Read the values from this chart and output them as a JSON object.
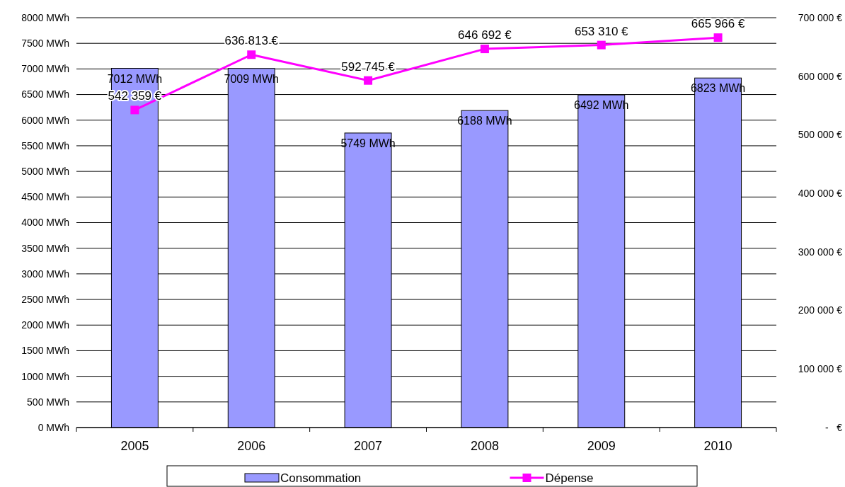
{
  "chart_data": {
    "type": "bar",
    "categories": [
      "2005",
      "2006",
      "2007",
      "2008",
      "2009",
      "2010"
    ],
    "series": [
      {
        "name": "Consommation",
        "color": "#9999ff",
        "values": [
          7012,
          7009,
          5749,
          6188,
          6492,
          6823
        ],
        "value_labels": [
          "7012 MWh",
          "7009 MWh",
          "5749 MWh",
          "6188 MWh",
          "6492 MWh",
          "6823 MWh"
        ]
      },
      {
        "name": "Dépense",
        "type": "line",
        "axis": "y2",
        "color": "#ff00ff",
        "marker": "square",
        "values": [
          542359,
          636813,
          592745,
          646692,
          653310,
          665966
        ],
        "value_labels": [
          "542 359 €",
          "636 813 €",
          "592 745 €",
          "646 692 €",
          "653 310 €",
          "665 966 €"
        ]
      }
    ],
    "ylim": [
      0,
      8000
    ],
    "yticks": [
      {
        "value": 0,
        "label": "0 MWh"
      },
      {
        "value": 500,
        "label": "500 MWh"
      },
      {
        "value": 1000,
        "label": "1000 MWh"
      },
      {
        "value": 1500,
        "label": "1500 MWh"
      },
      {
        "value": 2000,
        "label": "2000 MWh"
      },
      {
        "value": 2500,
        "label": "2500 MWh"
      },
      {
        "value": 3000,
        "label": "3000 MWh"
      },
      {
        "value": 3500,
        "label": "3500 MWh"
      },
      {
        "value": 4000,
        "label": "4000 MWh"
      },
      {
        "value": 4500,
        "label": "4500 MWh"
      },
      {
        "value": 5000,
        "label": "5000 MWh"
      },
      {
        "value": 5500,
        "label": "5500 MWh"
      },
      {
        "value": 6000,
        "label": "6000 MWh"
      },
      {
        "value": 6500,
        "label": "6500 MWh"
      },
      {
        "value": 7000,
        "label": "7000 MWh"
      },
      {
        "value": 7500,
        "label": "7500 MWh"
      },
      {
        "value": 8000,
        "label": "8000 MWh"
      }
    ],
    "y2lim": [
      0,
      700000
    ],
    "y2ticks": [
      {
        "value": 0,
        "label": "-   €"
      },
      {
        "value": 100000,
        "label": "100 000 €"
      },
      {
        "value": 200000,
        "label": "200 000 €"
      },
      {
        "value": 300000,
        "label": "300 000 €"
      },
      {
        "value": 400000,
        "label": "400 000 €"
      },
      {
        "value": 500000,
        "label": "500 000 €"
      },
      {
        "value": 600000,
        "label": "600 000 €"
      },
      {
        "value": 700000,
        "label": "700 000 €"
      }
    ],
    "grid": "y",
    "legend": "bottom"
  }
}
